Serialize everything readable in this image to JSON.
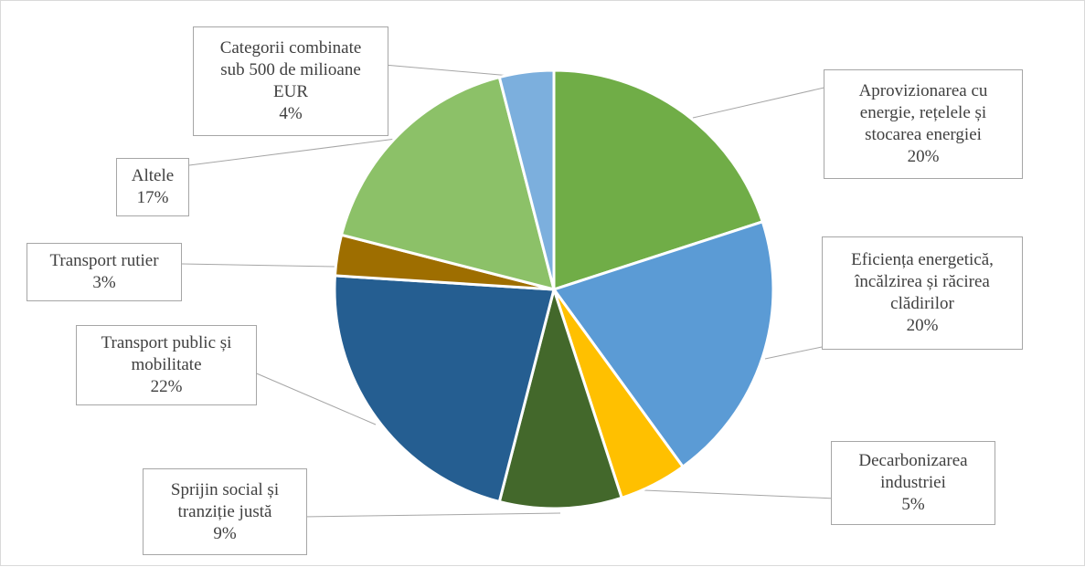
{
  "chart_data": {
    "type": "pie",
    "title": "",
    "start_angle_deg": 0,
    "direction": "clockwise",
    "slices": [
      {
        "label": [
          "Aprovizionarea cu",
          "energie, rețelele și",
          "stocarea energiei"
        ],
        "value": 20,
        "value_label": "20%",
        "color": "#70ad47"
      },
      {
        "label": [
          "Eficiența energetică,",
          "încălzirea și răcirea",
          "clădirilor"
        ],
        "value": 20,
        "value_label": "20%",
        "color": "#5b9bd5"
      },
      {
        "label": [
          "Decarbonizarea",
          "industriei"
        ],
        "value": 5,
        "value_label": "5%",
        "color": "#ffc000"
      },
      {
        "label": [
          "Sprijin social și",
          "tranziție justă"
        ],
        "value": 9,
        "value_label": "9%",
        "color": "#43682b"
      },
      {
        "label": [
          "Transport public și",
          "mobilitate"
        ],
        "value": 22,
        "value_label": "22%",
        "color": "#255e91"
      },
      {
        "label": [
          "Transport rutier"
        ],
        "value": 3,
        "value_label": "3%",
        "color": "#9e6e00"
      },
      {
        "label": [
          "Altele"
        ],
        "value": 17,
        "value_label": "17%",
        "color": "#8cc168"
      },
      {
        "label": [
          "Categorii combinate",
          "sub 500 de milioane",
          "EUR"
        ],
        "value": 4,
        "value_label": "4%",
        "color": "#7cafdd"
      }
    ],
    "legend": "none",
    "data_labels": "callouts"
  }
}
